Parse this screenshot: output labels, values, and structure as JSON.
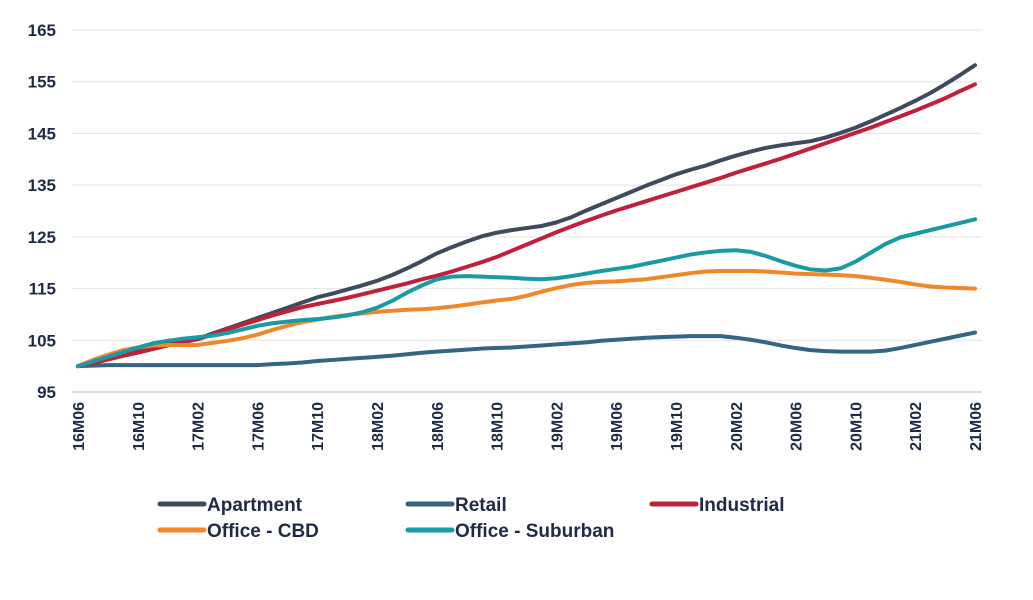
{
  "chart_data": {
    "type": "line",
    "x_tick_labels": [
      "16M06",
      "16M10",
      "17M02",
      "17M06",
      "17M10",
      "18M02",
      "18M06",
      "18M10",
      "19M02",
      "19M06",
      "19M10",
      "20M02",
      "20M06",
      "20M10",
      "21M02",
      "21M06"
    ],
    "x_periods": [
      "16M06",
      "16M07",
      "16M08",
      "16M09",
      "16M10",
      "16M11",
      "16M12",
      "17M01",
      "17M02",
      "17M03",
      "17M04",
      "17M05",
      "17M06",
      "17M07",
      "17M08",
      "17M09",
      "17M10",
      "17M11",
      "17M12",
      "18M01",
      "18M02",
      "18M03",
      "18M04",
      "18M05",
      "18M06",
      "18M07",
      "18M08",
      "18M09",
      "18M10",
      "18M11",
      "18M12",
      "19M01",
      "19M02",
      "19M03",
      "19M04",
      "19M05",
      "19M06",
      "19M07",
      "19M08",
      "19M09",
      "19M10",
      "19M11",
      "19M12",
      "20M01",
      "20M02",
      "20M03",
      "20M04",
      "20M05",
      "20M06",
      "20M07",
      "20M08",
      "20M09",
      "20M10",
      "20M11",
      "20M12",
      "21M01",
      "21M02",
      "21M03",
      "21M04",
      "21M05",
      "21M06"
    ],
    "y_ticks": [
      95,
      105,
      115,
      125,
      135,
      145,
      155,
      165
    ],
    "ylim": [
      95,
      165
    ],
    "grid": "horizontal",
    "legend_position": "bottom",
    "series": [
      {
        "name": "Apartment",
        "color": "#3f4a5c",
        "values": [
          100.0,
          100.6,
          101.3,
          102.0,
          102.8,
          103.6,
          104.3,
          104.8,
          105.3,
          106.3,
          107.3,
          108.3,
          109.3,
          110.3,
          111.3,
          112.3,
          113.3,
          114.0,
          114.8,
          115.6,
          116.5,
          117.6,
          118.9,
          120.3,
          121.8,
          123.0,
          124.1,
          125.1,
          125.8,
          126.3,
          126.7,
          127.1,
          127.8,
          128.8,
          130.1,
          131.3,
          132.5,
          133.7,
          134.9,
          136.0,
          137.1,
          138.0,
          138.8,
          139.8,
          140.7,
          141.5,
          142.2,
          142.7,
          143.1,
          143.5,
          144.2,
          145.1,
          146.1,
          147.3,
          148.6,
          149.9,
          151.3,
          152.8,
          154.5,
          156.3,
          158.2
        ]
      },
      {
        "name": "Retail",
        "color": "#356582",
        "values": [
          100.0,
          100.1,
          100.2,
          100.2,
          100.2,
          100.2,
          100.2,
          100.2,
          100.2,
          100.2,
          100.2,
          100.2,
          100.2,
          100.4,
          100.5,
          100.7,
          101.0,
          101.2,
          101.4,
          101.6,
          101.8,
          102.0,
          102.3,
          102.6,
          102.8,
          103.0,
          103.2,
          103.4,
          103.5,
          103.6,
          103.8,
          104.0,
          104.2,
          104.4,
          104.6,
          104.9,
          105.1,
          105.3,
          105.5,
          105.6,
          105.7,
          105.8,
          105.8,
          105.8,
          105.5,
          105.1,
          104.6,
          104.0,
          103.5,
          103.1,
          102.9,
          102.8,
          102.8,
          102.8,
          103.0,
          103.5,
          104.1,
          104.7,
          105.3,
          105.9,
          106.5
        ]
      },
      {
        "name": "Industrial",
        "color": "#c0203c",
        "values": [
          100.0,
          100.6,
          101.3,
          102.0,
          102.6,
          103.3,
          104.0,
          104.6,
          105.2,
          106.1,
          107.1,
          108.0,
          108.9,
          109.8,
          110.6,
          111.4,
          112.0,
          112.6,
          113.2,
          113.9,
          114.6,
          115.3,
          116.0,
          116.8,
          117.5,
          118.3,
          119.2,
          120.1,
          121.1,
          122.3,
          123.5,
          124.7,
          125.9,
          127.0,
          128.1,
          129.1,
          130.1,
          131.0,
          131.9,
          132.8,
          133.7,
          134.6,
          135.5,
          136.4,
          137.4,
          138.3,
          139.2,
          140.1,
          141.1,
          142.1,
          143.1,
          144.1,
          145.1,
          146.1,
          147.2,
          148.3,
          149.4,
          150.6,
          151.8,
          153.2,
          154.5
        ]
      },
      {
        "name": "Office - CBD",
        "color": "#f0872a",
        "values": [
          100.0,
          101.2,
          102.2,
          103.1,
          103.6,
          104.0,
          104.1,
          104.1,
          104.1,
          104.5,
          104.9,
          105.4,
          106.1,
          107.0,
          107.8,
          108.5,
          109.0,
          109.5,
          109.9,
          110.2,
          110.5,
          110.7,
          110.9,
          111.0,
          111.2,
          111.5,
          111.9,
          112.3,
          112.7,
          113.0,
          113.6,
          114.4,
          115.1,
          115.7,
          116.1,
          116.3,
          116.4,
          116.6,
          116.8,
          117.2,
          117.6,
          118.0,
          118.3,
          118.4,
          118.4,
          118.4,
          118.3,
          118.1,
          117.9,
          117.8,
          117.7,
          117.6,
          117.4,
          117.1,
          116.7,
          116.3,
          115.8,
          115.4,
          115.2,
          115.1,
          115.0
        ]
      },
      {
        "name": "Office - Suburban",
        "color": "#1a9aa3",
        "values": [
          100.0,
          100.9,
          101.8,
          102.7,
          103.6,
          104.4,
          104.9,
          105.3,
          105.6,
          105.9,
          106.4,
          107.1,
          107.8,
          108.3,
          108.6,
          108.9,
          109.1,
          109.4,
          109.8,
          110.4,
          111.3,
          112.6,
          114.2,
          115.6,
          116.8,
          117.3,
          117.4,
          117.3,
          117.2,
          117.1,
          116.9,
          116.8,
          117.0,
          117.4,
          117.9,
          118.4,
          118.8,
          119.2,
          119.8,
          120.4,
          121.0,
          121.6,
          122.0,
          122.3,
          122.4,
          122.1,
          121.3,
          120.3,
          119.4,
          118.7,
          118.5,
          118.9,
          120.2,
          121.9,
          123.6,
          124.9,
          125.6,
          126.3,
          127.0,
          127.7,
          128.4
        ]
      }
    ]
  }
}
